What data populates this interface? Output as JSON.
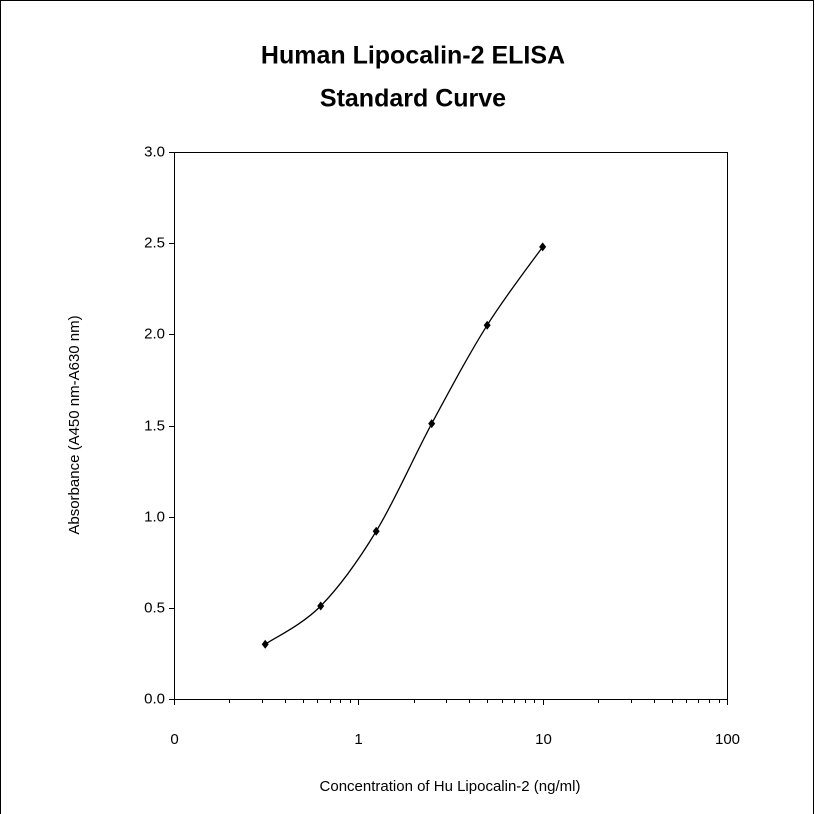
{
  "chart_data": {
    "type": "line",
    "title": [
      "Human Lipocalin-2 ELISA",
      "Standard Curve"
    ],
    "x_label": "Concentration of Hu Lipocalin-2 (ng/ml)",
    "y_label": "Absorbance (A450 nm-A630 nm)",
    "x": [
      0.3125,
      0.625,
      1.25,
      2.5,
      5,
      10
    ],
    "series": [
      {
        "color": "#000000",
        "values": [
          0.3,
          0.51,
          0.92,
          1.51,
          2.05,
          2.48
        ]
      }
    ],
    "x_scale": "log",
    "xlim": [
      0.1,
      100
    ],
    "xticks": [
      {
        "value": 0.1,
        "label": "0"
      },
      1,
      10,
      100
    ],
    "ylim": [
      0,
      3
    ],
    "yticks": [
      {
        "value": 0,
        "label": "0.0"
      },
      {
        "value": 0.5,
        "label": "0.5"
      },
      {
        "value": 1,
        "label": "1.0"
      },
      {
        "value": 1.5,
        "label": "1.5"
      },
      {
        "value": 2,
        "label": "2.0"
      },
      {
        "value": 2.5,
        "label": "2.5"
      },
      {
        "value": 3,
        "label": "3.0"
      }
    ],
    "smooth": true
  }
}
